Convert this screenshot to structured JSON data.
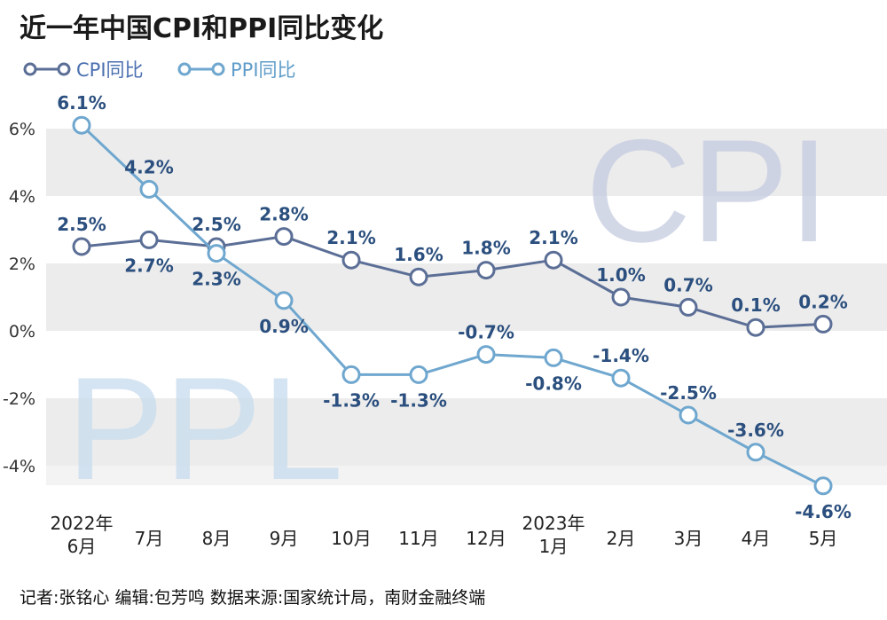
{
  "chart_data": {
    "type": "line",
    "title": "近一年中国CPI和PPI同比变化",
    "categories": [
      [
        "2022年",
        "6月"
      ],
      [
        "7月"
      ],
      [
        "8月"
      ],
      [
        "9月"
      ],
      [
        "10月"
      ],
      [
        "11月"
      ],
      [
        "12月"
      ],
      [
        "2023年",
        "1月"
      ],
      [
        "2月"
      ],
      [
        "3月"
      ],
      [
        "4月"
      ],
      [
        "5月"
      ]
    ],
    "series": [
      {
        "name": "CPI同比",
        "color": "#5b6e96",
        "values": [
          2.5,
          2.7,
          2.5,
          2.8,
          2.1,
          1.6,
          1.8,
          2.1,
          1.0,
          0.7,
          0.1,
          0.2
        ],
        "labels": [
          "2.5%",
          "2.7%",
          "2.5%",
          "2.8%",
          "2.1%",
          "1.6%",
          "1.8%",
          "2.1%",
          "1.0%",
          "0.7%",
          "0.1%",
          "0.2%"
        ],
        "label_pos": [
          "above",
          "below",
          "above",
          "above",
          "above",
          "above",
          "above",
          "above",
          "above",
          "above",
          "above",
          "above"
        ]
      },
      {
        "name": "PPI同比",
        "color": "#6fa7cf",
        "values": [
          6.1,
          4.2,
          2.3,
          0.9,
          -1.3,
          -1.3,
          -0.7,
          -0.8,
          -1.4,
          -2.5,
          -3.6,
          -4.6
        ],
        "labels": [
          "6.1%",
          "4.2%",
          "2.3%",
          "0.9%",
          "-1.3%",
          "-1.3%",
          "-0.7%",
          "-0.8%",
          "-1.4%",
          "-2.5%",
          "-3.6%",
          "-4.6%"
        ],
        "label_pos": [
          "above",
          "above",
          "below",
          "below",
          "below",
          "below",
          "above",
          "below",
          "above",
          "above",
          "above",
          "below"
        ]
      }
    ],
    "yticks": [
      6,
      4,
      2,
      0,
      -2,
      -4
    ],
    "ytick_labels": [
      "6%",
      "4%",
      "2%",
      "0%",
      "-2%",
      "-4%"
    ],
    "ylim": [
      -5,
      7
    ],
    "grid": "horizontal-bands",
    "legend_position": "top-left",
    "watermarks": [
      "CPI",
      "PPL"
    ]
  },
  "footer": "记者:张铭心   编辑:包芳鸣   数据来源:国家统计局，南财金融终端"
}
